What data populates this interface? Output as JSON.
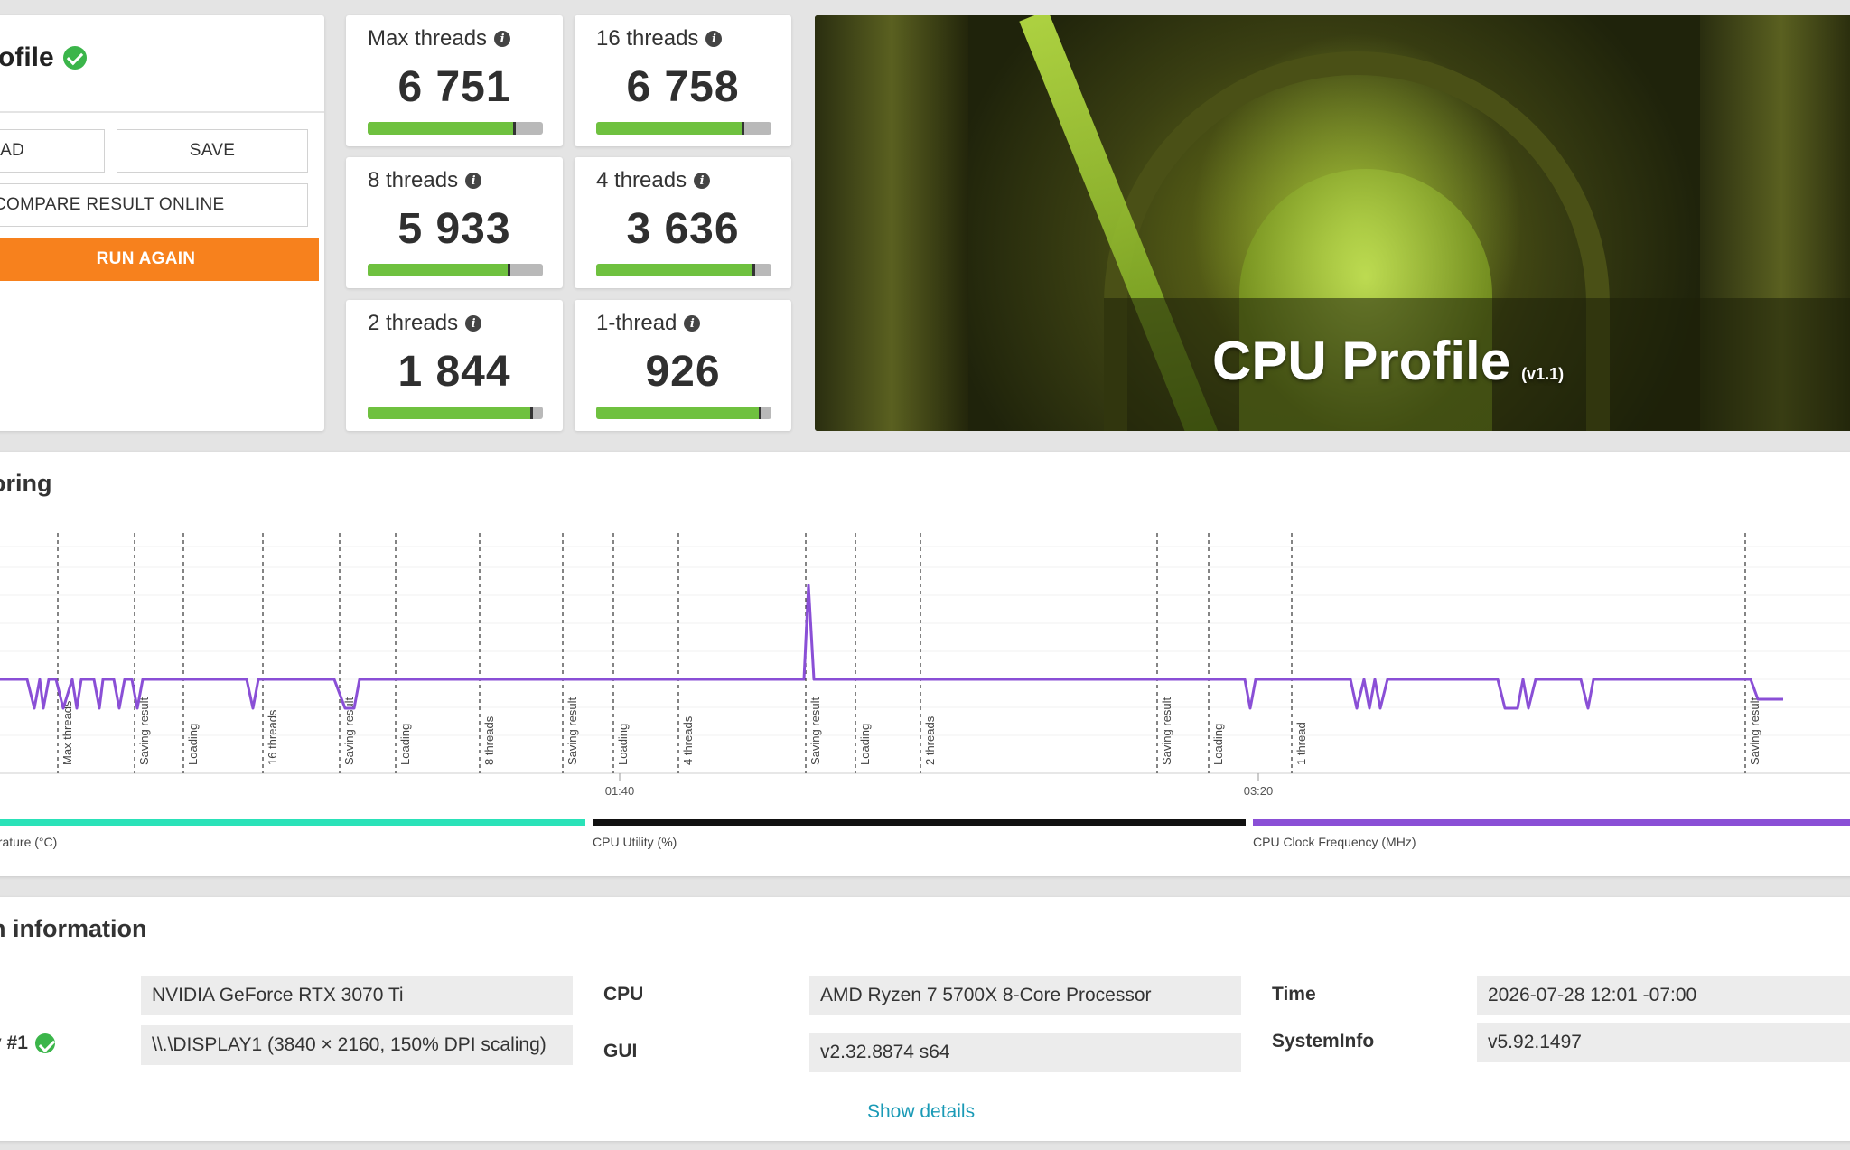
{
  "profile": {
    "title": "ofile",
    "load_label": "OAD",
    "save_label": "SAVE",
    "compare_label": "COMPARE RESULT ONLINE",
    "run_again_label": "RUN AGAIN"
  },
  "scores": [
    {
      "label": "Max threads",
      "value": "6 751",
      "bar": 0.84
    },
    {
      "label": "16 threads",
      "value": "6 758",
      "bar": 0.84
    },
    {
      "label": "8 threads",
      "value": "5 933",
      "bar": 0.81
    },
    {
      "label": "4 threads",
      "value": "3 636",
      "bar": 0.9
    },
    {
      "label": "2 threads",
      "value": "1 844",
      "bar": 0.94
    },
    {
      "label": "1-thread",
      "value": "926",
      "bar": 0.94
    }
  ],
  "hero": {
    "title": "CPU Profile",
    "version": "(v1.1)"
  },
  "monitoring": {
    "title": "oring",
    "legend": [
      {
        "label": "erature (°C)",
        "color": "#2ae2b8"
      },
      {
        "label": "CPU Utility (%)",
        "color": "#111111"
      },
      {
        "label": "CPU Clock Frequency (MHz)",
        "color": "#8a4fd6"
      }
    ],
    "x_ticks": [
      "01:40",
      "03:20"
    ]
  },
  "chart_data": {
    "type": "line",
    "title": "",
    "xlabel": "",
    "ylabel": "",
    "x_ticks": [
      "01:40",
      "03:20"
    ],
    "markers": [
      "Max threads",
      "Saving result",
      "Loading",
      "16 threads",
      "Saving result",
      "Loading",
      "8 threads",
      "Saving result",
      "Loading",
      "4 threads",
      "Saving result",
      "Loading",
      "2 threads",
      "Saving result",
      "Loading",
      "1 thread",
      "Saving result"
    ],
    "series": [
      {
        "name": "CPU Clock Frequency (MHz)",
        "color": "#8a4fd6"
      }
    ]
  },
  "system": {
    "title": "n information",
    "gpu_value": "NVIDIA GeForce RTX 3070 Ti",
    "display_label": "y #1",
    "display_value": "\\\\.\\DISPLAY1 (3840 × 2160, 150% DPI scaling)",
    "cpu_label": "CPU",
    "cpu_value": "AMD Ryzen 7 5700X 8-Core Processor",
    "gui_label": "GUI",
    "gui_value": "v2.32.8874 s64",
    "time_label": "Time",
    "time_value": "2026-07-28 12:01 -07:00",
    "sysinfo_label": "SystemInfo",
    "sysinfo_value": "v5.92.1497",
    "show_details": "Show details"
  }
}
